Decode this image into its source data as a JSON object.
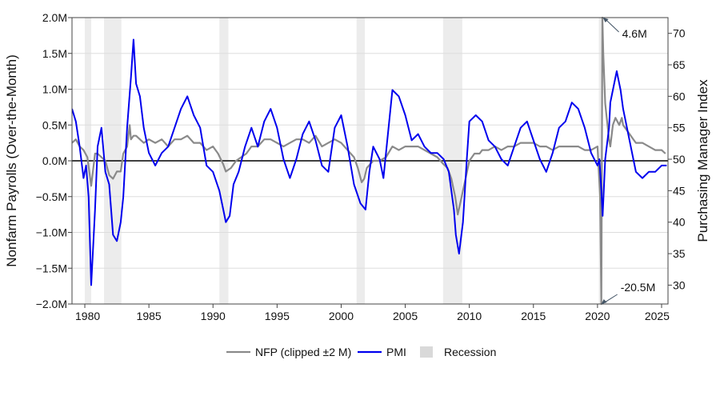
{
  "chart_data": {
    "type": "line",
    "title": "",
    "xlabel": "",
    "ylabel_left": "Nonfarm Payrolls (Over-the-Month)",
    "ylabel_right": "Purchasing Manager Index",
    "xlim": [
      1979,
      2025.5
    ],
    "ylim_left": [
      -2.0,
      2.0
    ],
    "ylim_right": [
      27.0,
      72.5
    ],
    "x_ticks": [
      1980,
      1985,
      1990,
      1995,
      2000,
      2005,
      2010,
      2015,
      2020,
      2025
    ],
    "x_tick_labels": [
      "1980",
      "1985",
      "1990",
      "1995",
      "2000",
      "2005",
      "2010",
      "2015",
      "2020",
      "2025"
    ],
    "left_ticks": [
      -2.0,
      -1.5,
      -1.0,
      -0.5,
      0.0,
      0.5,
      1.0,
      1.5,
      2.0
    ],
    "left_tick_labels": [
      "−2.0M",
      "−1.5M",
      "−1.0M",
      "−0.5M",
      "0.0M",
      "0.5M",
      "1.0M",
      "1.5M",
      "2.0M"
    ],
    "right_ticks": [
      30,
      35,
      40,
      45,
      50,
      55,
      60,
      65,
      70
    ],
    "right_tick_labels": [
      "30",
      "35",
      "40",
      "45",
      "50",
      "55",
      "60",
      "65",
      "70"
    ],
    "grid": true,
    "zero_line": true,
    "legend_position": "bottom-center",
    "colors": {
      "nfp": "#8a8a8a",
      "pmi": "#0000ee",
      "recession": "#ececec",
      "zero_line": "#000000",
      "grid": "#dddddd"
    },
    "legend": [
      {
        "label": "NFP (clipped ±2 M)",
        "kind": "line",
        "color": "#8a8a8a"
      },
      {
        "label": "PMI",
        "kind": "line",
        "color": "#0000ee"
      },
      {
        "label": "Recession",
        "kind": "patch",
        "color": "#d9d9d9"
      }
    ],
    "recessions": [
      {
        "start": 1980.0,
        "end": 1980.5
      },
      {
        "start": 1981.5,
        "end": 1982.85
      },
      {
        "start": 1990.5,
        "end": 1991.2
      },
      {
        "start": 2001.2,
        "end": 2001.85
      },
      {
        "start": 2007.95,
        "end": 2009.45
      },
      {
        "start": 2020.1,
        "end": 2020.35
      }
    ],
    "annotations": [
      {
        "text": "4.6M",
        "x": 2020.42,
        "y": 2.0,
        "axis": "left",
        "placement": "right"
      },
      {
        "text": "-20.5M",
        "x": 2020.3,
        "y": -2.0,
        "axis": "left",
        "placement": "right"
      }
    ],
    "series": [
      {
        "name": "NFP (clipped ±2 M)",
        "axis": "left",
        "color": "#8a8a8a",
        "x": [
          1979.0,
          1979.3,
          1979.6,
          1979.9,
          1980.2,
          1980.5,
          1980.8,
          1981.0,
          1981.3,
          1981.6,
          1981.9,
          1982.2,
          1982.5,
          1982.8,
          1983.0,
          1983.3,
          1983.5,
          1983.6,
          1983.8,
          1984.0,
          1984.3,
          1984.6,
          1985.0,
          1985.5,
          1986.0,
          1986.5,
          1987.0,
          1987.5,
          1988.0,
          1988.5,
          1989.0,
          1989.5,
          1990.0,
          1990.4,
          1990.8,
          1991.0,
          1991.4,
          1991.8,
          1992.2,
          1992.6,
          1993.0,
          1993.5,
          1994.0,
          1994.5,
          1995.0,
          1995.5,
          1996.0,
          1996.5,
          1997.0,
          1997.5,
          1998.0,
          1998.5,
          1999.0,
          1999.5,
          2000.0,
          2000.5,
          2001.0,
          2001.3,
          2001.6,
          2001.8,
          2002.0,
          2002.5,
          2003.0,
          2003.5,
          2004.0,
          2004.5,
          2005.0,
          2005.5,
          2006.0,
          2006.5,
          2007.0,
          2007.5,
          2008.0,
          2008.3,
          2008.6,
          2008.9,
          2009.1,
          2009.4,
          2009.7,
          2010.0,
          2010.4,
          2010.8,
          2011.0,
          2011.5,
          2012.0,
          2012.5,
          2013.0,
          2013.5,
          2014.0,
          2014.5,
          2015.0,
          2015.5,
          2016.0,
          2016.5,
          2017.0,
          2017.5,
          2018.0,
          2018.5,
          2019.0,
          2019.5,
          2020.0,
          2020.2,
          2020.3,
          2020.38,
          2020.45,
          2020.6,
          2020.9,
          2021.0,
          2021.2,
          2021.4,
          2021.7,
          2021.9,
          2022.0,
          2022.4,
          2022.8,
          2023.0,
          2023.5,
          2024.0,
          2024.5,
          2025.0,
          2025.3
        ],
        "values": [
          0.25,
          0.3,
          0.2,
          0.15,
          0.05,
          -0.35,
          0.1,
          0.1,
          0.05,
          0.0,
          -0.2,
          -0.25,
          -0.15,
          -0.15,
          0.1,
          0.2,
          0.5,
          0.3,
          0.35,
          0.35,
          0.3,
          0.25,
          0.3,
          0.25,
          0.3,
          0.2,
          0.3,
          0.3,
          0.35,
          0.25,
          0.25,
          0.15,
          0.2,
          0.1,
          -0.05,
          -0.15,
          -0.1,
          0.0,
          0.05,
          0.1,
          0.2,
          0.2,
          0.3,
          0.3,
          0.25,
          0.2,
          0.25,
          0.3,
          0.3,
          0.25,
          0.35,
          0.2,
          0.25,
          0.3,
          0.25,
          0.15,
          0.05,
          -0.1,
          -0.3,
          -0.25,
          -0.1,
          0.0,
          0.0,
          0.05,
          0.2,
          0.15,
          0.2,
          0.2,
          0.2,
          0.15,
          0.1,
          0.05,
          -0.05,
          -0.1,
          -0.25,
          -0.5,
          -0.75,
          -0.5,
          -0.25,
          0.0,
          0.1,
          0.1,
          0.15,
          0.15,
          0.2,
          0.15,
          0.2,
          0.2,
          0.25,
          0.25,
          0.25,
          0.2,
          0.2,
          0.15,
          0.2,
          0.2,
          0.2,
          0.2,
          0.15,
          0.15,
          0.2,
          -0.5,
          -2.0,
          2.0,
          1.5,
          0.8,
          0.3,
          0.2,
          0.5,
          0.6,
          0.5,
          0.6,
          0.5,
          0.4,
          0.3,
          0.25,
          0.25,
          0.2,
          0.15,
          0.15,
          0.1
        ]
      },
      {
        "name": "PMI",
        "axis": "right",
        "color": "#0000ee",
        "x": [
          1979.0,
          1979.3,
          1979.6,
          1979.9,
          1980.1,
          1980.3,
          1980.5,
          1980.8,
          1981.0,
          1981.3,
          1981.6,
          1981.9,
          1982.2,
          1982.5,
          1982.8,
          1983.0,
          1983.3,
          1983.6,
          1983.8,
          1984.0,
          1984.3,
          1984.6,
          1985.0,
          1985.5,
          1986.0,
          1986.5,
          1987.0,
          1987.5,
          1988.0,
          1988.5,
          1989.0,
          1989.5,
          1990.0,
          1990.5,
          1990.8,
          1991.0,
          1991.3,
          1991.6,
          1992.0,
          1992.5,
          1993.0,
          1993.5,
          1994.0,
          1994.5,
          1995.0,
          1995.5,
          1996.0,
          1996.5,
          1997.0,
          1997.5,
          1998.0,
          1998.5,
          1999.0,
          1999.5,
          2000.0,
          2000.5,
          2001.0,
          2001.5,
          2001.9,
          2002.2,
          2002.5,
          2003.0,
          2003.3,
          2003.6,
          2004.0,
          2004.5,
          2005.0,
          2005.5,
          2006.0,
          2006.5,
          2007.0,
          2007.5,
          2008.0,
          2008.4,
          2008.8,
          2008.95,
          2009.2,
          2009.5,
          2009.8,
          2010.0,
          2010.5,
          2011.0,
          2011.5,
          2012.0,
          2012.5,
          2013.0,
          2013.5,
          2014.0,
          2014.5,
          2015.0,
          2015.5,
          2016.0,
          2016.5,
          2017.0,
          2017.5,
          2018.0,
          2018.5,
          2019.0,
          2019.5,
          2020.0,
          2020.15,
          2020.3,
          2020.4,
          2020.6,
          2020.9,
          2021.0,
          2021.2,
          2021.5,
          2021.8,
          2022.0,
          2022.5,
          2023.0,
          2023.5,
          2024.0,
          2024.5,
          2025.0,
          2025.4
        ],
        "values": [
          58.0,
          56.0,
          52.0,
          47.0,
          49.0,
          44.0,
          30.0,
          42.0,
          52.0,
          55.0,
          48.0,
          46.0,
          38.0,
          37.0,
          40.0,
          44.0,
          55.0,
          63.0,
          69.0,
          62.0,
          60.0,
          55.0,
          51.0,
          49.0,
          51.0,
          52.0,
          55.0,
          58.0,
          60.0,
          57.0,
          55.0,
          49.0,
          48.0,
          45.0,
          42.0,
          40.0,
          41.0,
          46.0,
          48.0,
          52.0,
          55.0,
          52.0,
          56.0,
          58.0,
          55.0,
          50.0,
          47.0,
          50.0,
          54.0,
          56.0,
          53.0,
          49.0,
          48.0,
          55.0,
          57.0,
          52.0,
          46.0,
          43.0,
          42.0,
          48.0,
          52.0,
          50.0,
          47.0,
          53.0,
          61.0,
          60.0,
          57.0,
          53.0,
          54.0,
          52.0,
          51.0,
          51.0,
          50.0,
          48.0,
          42.0,
          38.0,
          35.0,
          40.0,
          50.0,
          56.0,
          57.0,
          56.0,
          53.0,
          52.0,
          50.0,
          49.0,
          52.0,
          55.0,
          56.0,
          53.0,
          50.0,
          48.0,
          51.0,
          55.0,
          56.0,
          59.0,
          58.0,
          55.0,
          51.0,
          49.0,
          50.0,
          45.0,
          41.0,
          50.0,
          55.0,
          59.0,
          61.0,
          64.0,
          61.0,
          58.0,
          53.0,
          48.0,
          47.0,
          48.0,
          48.0,
          49.0,
          49.0
        ]
      }
    ]
  }
}
